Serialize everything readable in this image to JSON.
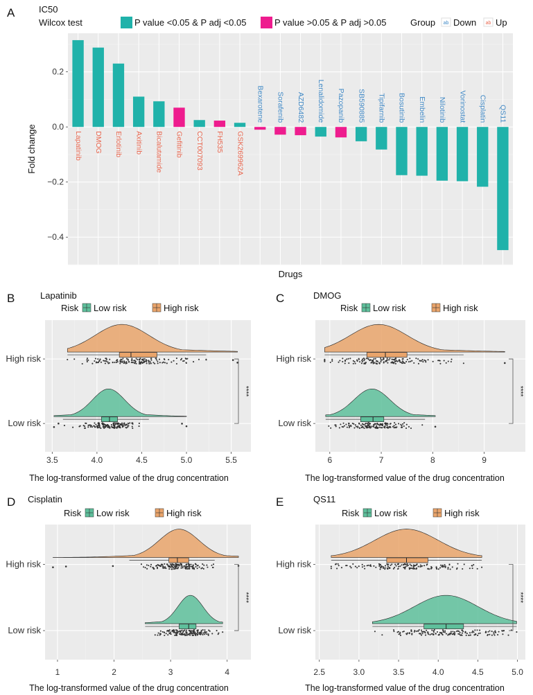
{
  "colors": {
    "sig": "#20B2AA",
    "nonsig": "#EE1C8E",
    "down": "#3F88C5",
    "up": "#E8664E",
    "low": "#5EBF9B",
    "high": "#E9A46B",
    "panel_bg": "#EBEBEB",
    "grid": "#FFFFFF",
    "point": "#333333"
  },
  "chart_data": [
    {
      "id": "A",
      "type": "bar",
      "panel_label": "A",
      "title": "IC50",
      "xlabel": "Drugs",
      "ylabel": "Fold change",
      "ylim": [
        -0.5,
        0.34
      ],
      "yticks": [
        0.2,
        0.0,
        -0.2,
        -0.4
      ],
      "ytick_labels": [
        "0.2",
        "0.0",
        "−0.2",
        "−0.4"
      ],
      "legend": {
        "test_title": "Wilcox test",
        "sig_label": "P value <0.05 & P adj <0.05",
        "nonsig_label": "P value >0.05 & P adj >0.05",
        "group_title": "Group",
        "down_label": "Down",
        "up_label": "Up"
      },
      "categories": [
        "Lapatinib",
        "DMOG",
        "Erlotinib",
        "Axitinib",
        "Bicalutamide",
        "Gefitinib",
        "CCT007093",
        "FH535",
        "GSK269962A",
        "Bexarotene",
        "Sorafenib",
        "AZD6482",
        "Lenalidomide",
        "Pazopanib",
        "SB590885",
        "Tipifarnib",
        "Bosutinib",
        "Embelin",
        "Nilotinib",
        "Vorinostat",
        "Cisplatin",
        "QS11"
      ],
      "values": [
        0.315,
        0.288,
        0.23,
        0.11,
        0.093,
        0.07,
        0.025,
        0.023,
        0.015,
        -0.01,
        -0.028,
        -0.03,
        -0.035,
        -0.038,
        -0.052,
        -0.082,
        -0.175,
        -0.177,
        -0.195,
        -0.197,
        -0.217,
        -0.447
      ],
      "significant": [
        true,
        true,
        true,
        true,
        true,
        false,
        true,
        false,
        true,
        false,
        false,
        false,
        true,
        false,
        true,
        true,
        true,
        true,
        true,
        true,
        true,
        true
      ],
      "group": [
        "Up",
        "Up",
        "Up",
        "Up",
        "Up",
        "Up",
        "Up",
        "Up",
        "Up",
        "Down",
        "Down",
        "Down",
        "Down",
        "Down",
        "Down",
        "Down",
        "Down",
        "Down",
        "Down",
        "Down",
        "Down",
        "Down"
      ]
    },
    {
      "id": "B",
      "type": "raincloud",
      "panel_label": "B",
      "title": "Lapatinib",
      "xlabel": "The log-transformed value of the drug concentration",
      "xlim": [
        3.42,
        5.72
      ],
      "xticks": [
        3.5,
        4.0,
        4.5,
        5.0,
        5.5
      ],
      "xtick_labels": [
        "3.5",
        "4.0",
        "4.5",
        "5.0",
        "5.5"
      ],
      "legend": {
        "title": "Risk",
        "low_label": "Low risk",
        "high_label": "High risk"
      },
      "groups": [
        "High risk",
        "Low risk"
      ],
      "significance": "****",
      "high": {
        "min": 3.67,
        "q1": 4.25,
        "median": 4.38,
        "q3": 4.67,
        "max": 5.22,
        "mode": 4.28,
        "sd": 0.3,
        "outliers": [
          5.52,
          5.57
        ]
      },
      "low": {
        "min": 3.62,
        "q1": 4.05,
        "median": 4.14,
        "q3": 4.23,
        "max": 4.58,
        "mode": 4.13,
        "sd": 0.18,
        "outliers": [
          3.52,
          3.57,
          4.95,
          5.0
        ]
      }
    },
    {
      "id": "C",
      "type": "raincloud",
      "panel_label": "C",
      "title": "DMOG",
      "xlabel": "The log-transformed value of the drug concentration",
      "xlim": [
        5.72,
        9.8
      ],
      "xticks": [
        6,
        7,
        8,
        9
      ],
      "xtick_labels": [
        "6",
        "7",
        "8",
        "9"
      ],
      "legend": {
        "title": "Risk",
        "low_label": "Low risk",
        "high_label": "High risk"
      },
      "groups": [
        "High risk",
        "Low risk"
      ],
      "significance": "****",
      "high": {
        "min": 5.9,
        "q1": 6.72,
        "median": 7.08,
        "q3": 7.5,
        "max": 8.6,
        "mode": 6.95,
        "sd": 0.55,
        "outliers": [
          9.4
        ]
      },
      "low": {
        "min": 5.92,
        "q1": 6.6,
        "median": 6.84,
        "q3": 7.05,
        "max": 7.85,
        "mode": 6.82,
        "sd": 0.35,
        "outliers": [
          8.05
        ]
      }
    },
    {
      "id": "D",
      "type": "raincloud",
      "panel_label": "D",
      "title": "Cisplatin",
      "xlabel": "The log-transformed value of the drug concentration",
      "xlim": [
        0.78,
        4.42
      ],
      "xticks": [
        1,
        2,
        3,
        4
      ],
      "xtick_labels": [
        "1",
        "2",
        "3",
        "4"
      ],
      "legend": {
        "title": "Risk",
        "low_label": "Low risk",
        "high_label": "High risk"
      },
      "groups": [
        "High risk",
        "Low risk"
      ],
      "significance": "****",
      "high": {
        "min": 2.27,
        "q1": 2.97,
        "median": 3.12,
        "q3": 3.32,
        "max": 3.78,
        "mode": 3.15,
        "sd": 0.35,
        "outliers": [
          0.92,
          1.15,
          1.98,
          4.2
        ]
      },
      "low": {
        "min": 2.55,
        "q1": 3.15,
        "median": 3.32,
        "q3": 3.45,
        "max": 3.92,
        "mode": 3.35,
        "sd": 0.22,
        "outliers": []
      }
    },
    {
      "id": "E",
      "type": "raincloud",
      "panel_label": "E",
      "title": "QS11",
      "xlabel": "The log-transformed value of the drug concentration",
      "xlim": [
        2.45,
        5.1
      ],
      "xticks": [
        2.5,
        3.0,
        3.5,
        4.0,
        4.5,
        5.0
      ],
      "xtick_labels": [
        "2.5",
        "3.0",
        "3.5",
        "4.0",
        "4.5",
        "5.0"
      ],
      "legend": {
        "title": "Risk",
        "low_label": "Low risk",
        "high_label": "High risk"
      },
      "groups": [
        "High risk",
        "Low risk"
      ],
      "significance": "****",
      "high": {
        "min": 2.65,
        "q1": 3.35,
        "median": 3.6,
        "q3": 3.87,
        "max": 4.55,
        "mode": 3.6,
        "sd": 0.4,
        "outliers": []
      },
      "low": {
        "min": 3.17,
        "q1": 3.82,
        "median": 4.1,
        "q3": 4.32,
        "max": 4.99,
        "mode": 4.1,
        "sd": 0.4,
        "outliers": []
      }
    }
  ]
}
